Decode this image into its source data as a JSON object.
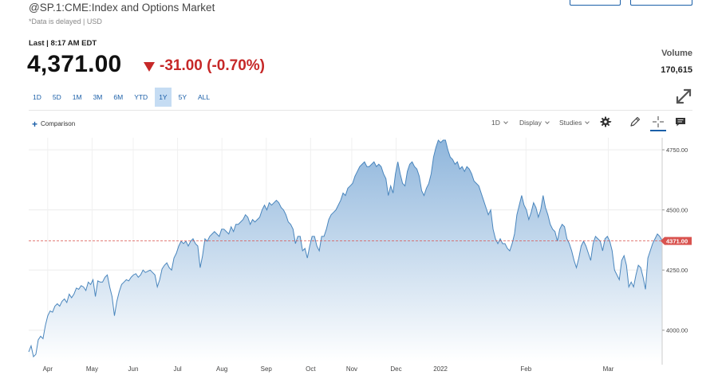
{
  "header": {
    "title": "@SP.1:CME:Index and Options Market",
    "subtitle": "*Data is delayed | USD"
  },
  "quote": {
    "last_label": "Last | 8:17 AM EDT",
    "price": "4,371.00",
    "change": "-31.00 (-0.70%)",
    "change_color": "#c62828",
    "volume_label": "Volume",
    "volume_value": "170,615"
  },
  "ranges": [
    {
      "label": "1D",
      "active": false
    },
    {
      "label": "5D",
      "active": false
    },
    {
      "label": "1M",
      "active": false
    },
    {
      "label": "3M",
      "active": false
    },
    {
      "label": "6M",
      "active": false
    },
    {
      "label": "YTD",
      "active": false
    },
    {
      "label": "1Y",
      "active": true
    },
    {
      "label": "5Y",
      "active": false
    },
    {
      "label": "ALL",
      "active": false
    }
  ],
  "toolbar": {
    "comparison_label": "Comparison",
    "interval_label": "1D",
    "display_label": "Display",
    "studies_label": "Studies",
    "icons": [
      "gear-icon",
      "pencil-icon",
      "crosshair-icon",
      "comment-icon",
      "expand-icon"
    ]
  },
  "chart_data": {
    "type": "area",
    "title": "",
    "xlabel": "",
    "ylabel": "",
    "x_labels": [
      "Apr",
      "May",
      "Jun",
      "Jul",
      "Aug",
      "Sep",
      "Oct",
      "Nov",
      "Dec",
      "2022",
      "Feb",
      "Mar"
    ],
    "y_ticks": [
      4000,
      4250,
      4500,
      4750
    ],
    "y_tick_labels": [
      "4000.00",
      "4250.00",
      "4500.00",
      "4750.00"
    ],
    "ylim": [
      3870,
      4800
    ],
    "last_value": 4371,
    "last_value_label": "4371.00",
    "grid": true,
    "line_color": "#4a86bd",
    "fill_top_color": "#8fb6dc",
    "last_line_color": "#d9534f",
    "values": [
      3910,
      3935,
      3890,
      3900,
      3960,
      3975,
      3965,
      4020,
      4060,
      4080,
      4075,
      4100,
      4110,
      4100,
      4120,
      4130,
      4115,
      4150,
      4135,
      4150,
      4175,
      4170,
      4185,
      4180,
      4165,
      4200,
      4190,
      4210,
      4140,
      4205,
      4200,
      4200,
      4220,
      4230,
      4180,
      4140,
      4060,
      4120,
      4160,
      4190,
      4200,
      4210,
      4205,
      4220,
      4230,
      4235,
      4220,
      4230,
      4250,
      4240,
      4245,
      4250,
      4240,
      4230,
      4180,
      4210,
      4255,
      4270,
      4280,
      4260,
      4250,
      4300,
      4320,
      4350,
      4370,
      4360,
      4370,
      4350,
      4370,
      4380,
      4360,
      4350,
      4260,
      4310,
      4380,
      4370,
      4390,
      4400,
      4410,
      4400,
      4390,
      4420,
      4420,
      4410,
      4400,
      4430,
      4410,
      4440,
      4440,
      4450,
      4460,
      4480,
      4470,
      4440,
      4460,
      4450,
      4460,
      4470,
      4500,
      4520,
      4500,
      4530,
      4520,
      4530,
      4540,
      4530,
      4510,
      4500,
      4480,
      4450,
      4440,
      4420,
      4360,
      4390,
      4390,
      4330,
      4340,
      4300,
      4350,
      4390,
      4390,
      4350,
      4330,
      4390,
      4390,
      4420,
      4460,
      4480,
      4490,
      4500,
      4520,
      4540,
      4570,
      4560,
      4590,
      4600,
      4610,
      4640,
      4660,
      4680,
      4690,
      4700,
      4680,
      4680,
      4690,
      4700,
      4680,
      4690,
      4680,
      4650,
      4630,
      4560,
      4600,
      4570,
      4650,
      4700,
      4650,
      4610,
      4600,
      4660,
      4690,
      4700,
      4680,
      4670,
      4640,
      4580,
      4560,
      4590,
      4610,
      4650,
      4720,
      4760,
      4790,
      4780,
      4790,
      4790,
      4750,
      4720,
      4710,
      4690,
      4700,
      4670,
      4680,
      4660,
      4680,
      4670,
      4650,
      4620,
      4610,
      4600,
      4570,
      4540,
      4510,
      4480,
      4500,
      4420,
      4380,
      4360,
      4380,
      4360,
      4360,
      4340,
      4330,
      4360,
      4400,
      4480,
      4520,
      4560,
      4520,
      4500,
      4460,
      4490,
      4530,
      4510,
      4470,
      4500,
      4560,
      4510,
      4480,
      4440,
      4420,
      4410,
      4370,
      4420,
      4440,
      4430,
      4380,
      4360,
      4330,
      4290,
      4260,
      4300,
      4350,
      4370,
      4350,
      4320,
      4290,
      4360,
      4390,
      4380,
      4370,
      4330,
      4380,
      4390,
      4370,
      4330,
      4250,
      4230,
      4210,
      4290,
      4310,
      4270,
      4180,
      4200,
      4180,
      4230,
      4270,
      4260,
      4220,
      4170,
      4300,
      4330,
      4360,
      4380,
      4400,
      4390,
      4371
    ]
  }
}
